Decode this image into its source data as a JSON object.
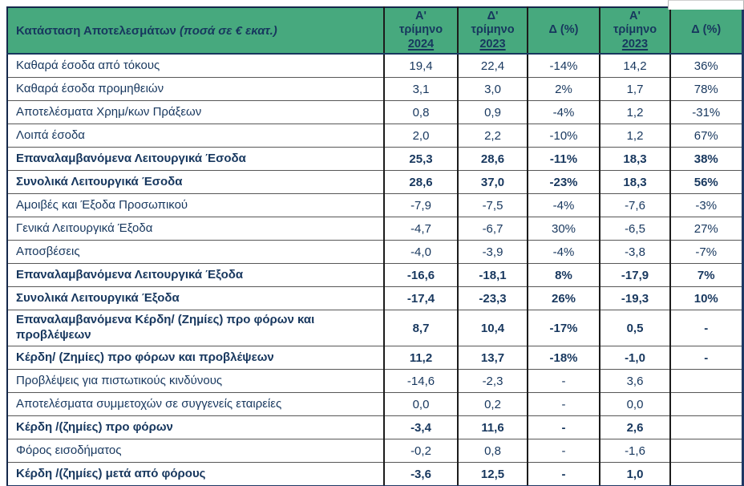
{
  "colors": {
    "header_green": "#47A97E",
    "text_navy": "#17375E",
    "outer_border_navy": "#1F3864"
  },
  "header": {
    "title_main": "Κατάσταση Αποτελεσμάτων",
    "title_note": " (ποσά σε € εκατ.)",
    "col1": {
      "l1": "Α'",
      "l2": "τρίμηνο",
      "year": "2024"
    },
    "col2": {
      "l1": "Δ'",
      "l2": "τρίμηνο",
      "year": "2023"
    },
    "col3": "Δ (%)",
    "col4": {
      "l1": "Α'",
      "l2": "τρίμηνο",
      "year": "2023"
    },
    "col5": "Δ (%)"
  },
  "chart_data": {
    "type": "table",
    "title": "Κατάσταση Αποτελεσμάτων (ποσά σε € εκατ.)",
    "columns": [
      "Α' τρίμηνο 2024",
      "Δ' τρίμηνο 2023",
      "Δ (%)",
      "Α' τρίμηνο 2023",
      "Δ (%)"
    ],
    "rows": [
      {
        "label": "Καθαρά έσοδα από τόκους",
        "values": [
          "19,4",
          "22,4",
          "-14%",
          "14,2",
          "36%"
        ],
        "bold": false,
        "tall": false
      },
      {
        "label": "Καθαρά έσοδα προμηθειών",
        "values": [
          "3,1",
          "3,0",
          "2%",
          "1,7",
          "78%"
        ],
        "bold": false,
        "tall": false
      },
      {
        "label": "Αποτελέσματα Χρημ/κων Πράξεων",
        "values": [
          "0,8",
          "0,9",
          "-4%",
          "1,2",
          "-31%"
        ],
        "bold": false,
        "tall": false
      },
      {
        "label": "Λοιπά έσοδα",
        "values": [
          "2,0",
          "2,2",
          "-10%",
          "1,2",
          "67%"
        ],
        "bold": false,
        "tall": false
      },
      {
        "label": "Επαναλαμβανόμενα Λειτουργικά Έσοδα",
        "values": [
          "25,3",
          "28,6",
          "-11%",
          "18,3",
          "38%"
        ],
        "bold": true,
        "tall": false
      },
      {
        "label": "Συνολικά Λειτουργικά Έσοδα",
        "values": [
          "28,6",
          "37,0",
          "-23%",
          "18,3",
          "56%"
        ],
        "bold": true,
        "tall": false
      },
      {
        "label": "Αμοιβές και Έξοδα Προσωπικού",
        "values": [
          "-7,9",
          "-7,5",
          "-4%",
          "-7,6",
          "-3%"
        ],
        "bold": false,
        "tall": false
      },
      {
        "label": "Γενικά Λειτουργικά Έξοδα",
        "values": [
          "-4,7",
          "-6,7",
          "30%",
          "-6,5",
          "27%"
        ],
        "bold": false,
        "tall": false
      },
      {
        "label": "Αποσβέσεις",
        "values": [
          "-4,0",
          "-3,9",
          "-4%",
          "-3,8",
          "-7%"
        ],
        "bold": false,
        "tall": false
      },
      {
        "label": "Επαναλαμβανόμενα Λειτουργικά Έξοδα",
        "values": [
          "-16,6",
          "-18,1",
          "8%",
          "-17,9",
          "7%"
        ],
        "bold": true,
        "tall": false
      },
      {
        "label": "Συνολικά Λειτουργικά Έξοδα",
        "values": [
          "-17,4",
          "-23,3",
          "26%",
          "-19,3",
          "10%"
        ],
        "bold": true,
        "tall": false
      },
      {
        "label": "Επαναλαμβανόμενα Κέρδη/ (Ζημίες) προ φόρων και προβλέψεων",
        "values": [
          "8,7",
          "10,4",
          "-17%",
          "0,5",
          "-"
        ],
        "bold": true,
        "tall": true
      },
      {
        "label": "Κέρδη/ (Ζημίες) προ φόρων και προβλέψεων",
        "values": [
          "11,2",
          "13,7",
          "-18%",
          "-1,0",
          "-"
        ],
        "bold": true,
        "tall": false
      },
      {
        "label": "Προβλέψεις για πιστωτικούς κινδύνους",
        "values": [
          "-14,6",
          "-2,3",
          "-",
          "3,6",
          ""
        ],
        "bold": false,
        "tall": false
      },
      {
        "label": "Αποτελέσματα συμμετοχών σε συγγενείς εταιρείες",
        "values": [
          "0,0",
          "0,2",
          "-",
          "0,0",
          ""
        ],
        "bold": false,
        "tall": false
      },
      {
        "label": "Κέρδη /(ζημίες) προ φόρων",
        "values": [
          "-3,4",
          "11,6",
          "-",
          "2,6",
          ""
        ],
        "bold": true,
        "tall": false
      },
      {
        "label": "Φόρος εισοδήματος",
        "values": [
          "-0,2",
          "0,8",
          "-",
          "-1,6",
          ""
        ],
        "bold": false,
        "tall": false
      },
      {
        "label": "Κέρδη /(ζημίες) μετά από φόρους",
        "values": [
          "-3,6",
          "12,5",
          "-",
          "1,0",
          ""
        ],
        "bold": true,
        "tall": false
      }
    ]
  }
}
